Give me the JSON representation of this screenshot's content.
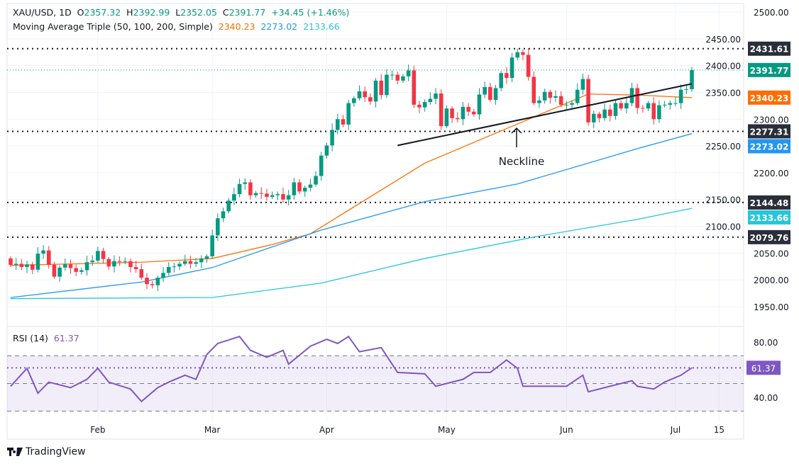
{
  "header": {
    "symbol": "XAU/USD, 1D",
    "open_prefix": "O",
    "open": "2357.32",
    "high_prefix": "H",
    "high": "2392.99",
    "low_prefix": "L",
    "low": "2352.05",
    "close_prefix": "C",
    "close": "2391.77",
    "change": "+34.45 (+1.46%)",
    "ma_label": "Moving Average Triple (50, 100, 200, Simple)",
    "ma50": "2340.23",
    "ma100": "2273.02",
    "ma200": "2133.66"
  },
  "rsi_header": {
    "label": "RSI (14)",
    "value": "61.37"
  },
  "brand": "TradingView",
  "annotation": "Neckline",
  "colors": {
    "up": "#089981",
    "down": "#f23645",
    "ma50": "#ff6d00",
    "ma100": "#2196f3",
    "ma200": "#26c6da",
    "rsi": "#7e57c2",
    "level": "#131722"
  },
  "chart_data": [
    {
      "type": "candlestick",
      "title": "XAU/USD, 1D",
      "ylim": [
        1930,
        2510
      ],
      "y_ticks": [
        "2500.00",
        "2450.00",
        "2400.00",
        "2350.00",
        "2300.00",
        "2250.00",
        "2200.00",
        "2150.00",
        "2100.00",
        "2050.00",
        "2000.00",
        "1950.00"
      ],
      "x_ticks": [
        {
          "label": "Feb",
          "index": 16
        },
        {
          "label": "Mar",
          "index": 37
        },
        {
          "label": "Apr",
          "index": 58
        },
        {
          "label": "May",
          "index": 80
        },
        {
          "label": "Jun",
          "index": 102
        },
        {
          "label": "Jul",
          "index": 122
        },
        {
          "label": "15",
          "index": 130
        }
      ],
      "first_open": 2040,
      "closes": [
        2028,
        2030,
        2024,
        2029,
        2019,
        2049,
        2055,
        2028,
        2006,
        2023,
        2029,
        2022,
        2015,
        2018,
        2033,
        2036,
        2054,
        2039,
        2025,
        2035,
        2034,
        2035,
        2024,
        2020,
        2004,
        1992,
        1990,
        2004,
        2013,
        2024,
        2025,
        2030,
        2035,
        2030,
        2033,
        2040,
        2044,
        2083,
        2115,
        2128,
        2148,
        2160,
        2179,
        2182,
        2158,
        2162,
        2161,
        2155,
        2158,
        2160,
        2150,
        2158,
        2182,
        2165,
        2172,
        2178,
        2194,
        2232,
        2251,
        2280,
        2300,
        2290,
        2330,
        2339,
        2352,
        2341,
        2333,
        2372,
        2345,
        2383,
        2383,
        2372,
        2380,
        2391,
        2327,
        2322,
        2332,
        2338,
        2348,
        2287,
        2320,
        2302,
        2300,
        2323,
        2314,
        2309,
        2346,
        2360,
        2336,
        2358,
        2386,
        2377,
        2415,
        2425,
        2420,
        2379,
        2330,
        2335,
        2351,
        2340,
        2343,
        2327,
        2327,
        2330,
        2355,
        2375,
        2294,
        2310,
        2302,
        2318,
        2306,
        2330,
        2320,
        2330,
        2358,
        2321,
        2320,
        2330,
        2300,
        2326,
        2327,
        2330,
        2330,
        2355,
        2356,
        2391.77
      ],
      "moving_averages": [
        {
          "name": "MA 50",
          "value": "2340.23",
          "points": [
            [
              0,
              2027
            ],
            [
              24,
              2033
            ],
            [
              37,
              2040
            ],
            [
              48,
              2066
            ],
            [
              55,
              2086
            ],
            [
              76,
              2218
            ],
            [
              93,
              2291
            ],
            [
              106,
              2347
            ],
            [
              115,
              2345
            ],
            [
              125,
              2340.23
            ]
          ]
        },
        {
          "name": "MA 100",
          "value": "2273.02",
          "points": [
            [
              0,
              1967
            ],
            [
              24,
              1996
            ],
            [
              37,
              2023
            ],
            [
              57,
              2093
            ],
            [
              76,
              2146
            ],
            [
              93,
              2179
            ],
            [
              115,
              2245
            ],
            [
              125,
              2273.02
            ]
          ]
        },
        {
          "name": "MA 200",
          "value": "2133.66",
          "points": [
            [
              0,
              1965
            ],
            [
              37,
              1967
            ],
            [
              57,
              1994
            ],
            [
              76,
              2040
            ],
            [
              96,
              2080
            ],
            [
              115,
              2113
            ],
            [
              125,
              2133.66
            ]
          ]
        }
      ],
      "levels": [
        2431.61,
        2277.31,
        2144.48,
        2079.76
      ],
      "level_labels": [
        "2431.61",
        "2277.31",
        "2144.48",
        "2079.76"
      ],
      "last_price": "2391.77",
      "neckline": [
        [
          71,
          2251
        ],
        [
          125,
          2366
        ]
      ]
    },
    {
      "type": "line",
      "title": "RSI (14)",
      "ylim": [
        25,
        88
      ],
      "y_ticks": [
        "80.00",
        "40.00"
      ],
      "bands": {
        "upper": 70,
        "middle": 50,
        "lower": 30
      },
      "last_value": "61.37",
      "points": [
        [
          0,
          48
        ],
        [
          3,
          61
        ],
        [
          5,
          43
        ],
        [
          7,
          51
        ],
        [
          11,
          47
        ],
        [
          14,
          53
        ],
        [
          16,
          61
        ],
        [
          18,
          51
        ],
        [
          22,
          46
        ],
        [
          24,
          37
        ],
        [
          27,
          47
        ],
        [
          29,
          51
        ],
        [
          32,
          56
        ],
        [
          34,
          53
        ],
        [
          36,
          71
        ],
        [
          38,
          79
        ],
        [
          42,
          84
        ],
        [
          44,
          74
        ],
        [
          47,
          69
        ],
        [
          50,
          74
        ],
        [
          51,
          64
        ],
        [
          55,
          77
        ],
        [
          58,
          82
        ],
        [
          60,
          79
        ],
        [
          62,
          84
        ],
        [
          64,
          73
        ],
        [
          68,
          76
        ],
        [
          71,
          58
        ],
        [
          76,
          57
        ],
        [
          78,
          48
        ],
        [
          83,
          53
        ],
        [
          85,
          58
        ],
        [
          88,
          58
        ],
        [
          91,
          67
        ],
        [
          93,
          61
        ],
        [
          94,
          48
        ],
        [
          99,
          48
        ],
        [
          102,
          48
        ],
        [
          105,
          56
        ],
        [
          106,
          44
        ],
        [
          110,
          48
        ],
        [
          114,
          52
        ],
        [
          115,
          48
        ],
        [
          118,
          46
        ],
        [
          120,
          51
        ],
        [
          123,
          56
        ],
        [
          125,
          61.37
        ]
      ]
    }
  ]
}
